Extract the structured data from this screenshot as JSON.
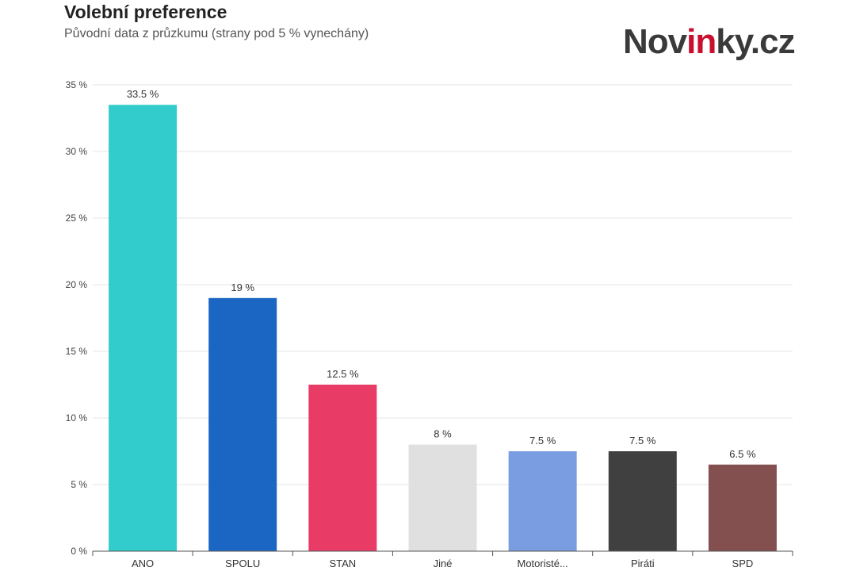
{
  "header": {
    "title": "Volební preference",
    "subtitle": "Původní data z průzkumu (strany pod 5 % vynechány)"
  },
  "logo": {
    "text_pre": "Nov",
    "text_accent": "in",
    "text_post": "ky.cz"
  },
  "chart_data": {
    "type": "bar",
    "categories": [
      "ANO",
      "SPOLU",
      "STAN",
      "Jiné",
      "Motoristé...",
      "Piráti",
      "SPD"
    ],
    "values": [
      33.5,
      19,
      12.5,
      8,
      7.5,
      7.5,
      6.5
    ],
    "data_labels": [
      "33.5 %",
      "19 %",
      "12.5 %",
      "8 %",
      "7.5 %",
      "7.5 %",
      "6.5 %"
    ],
    "colors": [
      "#33cccc",
      "#1a66c2",
      "#e83c66",
      "#e0e0e0",
      "#7a9ce0",
      "#404040",
      "#834f4f"
    ],
    "ylim": [
      0,
      35
    ],
    "yticks": [
      0,
      5,
      10,
      15,
      20,
      25,
      30,
      35
    ],
    "ytick_labels": [
      "0 %",
      "5 %",
      "10 %",
      "15 %",
      "20 %",
      "25 %",
      "30 %",
      "35 %"
    ],
    "grid": true,
    "title": "Volební preference",
    "xlabel": "",
    "ylabel": ""
  }
}
